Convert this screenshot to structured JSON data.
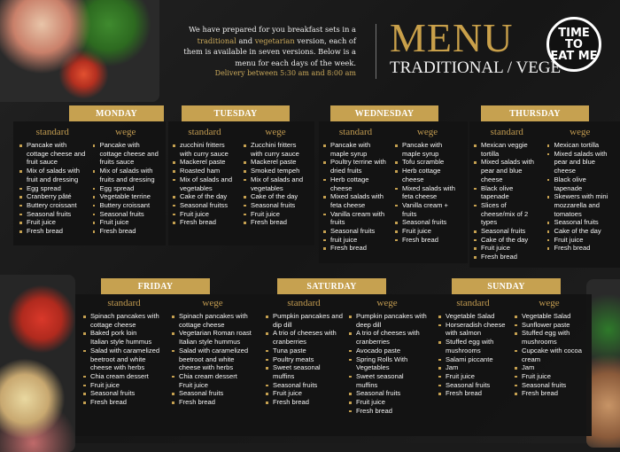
{
  "header": {
    "intro_parts": [
      "We have prepared for you breakfast sets in a ",
      "traditional",
      " and ",
      "vegetarian",
      " version, each of them is available in seven versions. Below is a menu for each days of the week."
    ],
    "delivery": "Delivery between 5:30 am and 8:00 am",
    "title": "MENU",
    "subtitle": "TRADITIONAL / VEGE",
    "logo_text": "TIME TO EAT ME"
  },
  "column_labels": {
    "standard": "standard",
    "wege": "wege"
  },
  "colors": {
    "gold": "#c6a150",
    "background": "#1b1b1b"
  },
  "days": [
    {
      "name": "MONDAY",
      "standard": [
        "Pancake with cottage cheese and fruit sauce",
        "Mix of salads with fruit and dressing",
        "Egg spread",
        "Cranberry pâté",
        "Buttery croissant",
        "Seasonal fruits",
        "Fruit juice",
        "Fresh bread"
      ],
      "wege": [
        "Pancake with cottage cheese and fruits sauce",
        "Mix of salads with fruits and dressing",
        "Egg spread",
        "Vegetable terrine",
        "Buttery croissant",
        "Seasonal fruits",
        "Fruit juice",
        "Fresh bread"
      ]
    },
    {
      "name": "TUESDAY",
      "standard": [
        "zucchini fritters with curry sauce",
        "Mackerel paste",
        "Roasted ham",
        "Mix of salads and vegetables",
        "Cake of the day",
        "Seasonal fruitss",
        "Fruit juice",
        "Fresh bread"
      ],
      "wege": [
        "Zucchini fritters with curry sauce",
        "Mackerel paste",
        "Smoked tempeh",
        "Mix of salads and vegetables",
        "Cake of the day",
        "Seasonal fruits",
        "Fruit juice",
        "Fresh bread"
      ]
    },
    {
      "name": "WEDNESDAY",
      "standard": [
        "Pancake with maple syrup",
        "Poultry terrine with dried fruits",
        "Herb cottage cheese",
        "Mixed salads with feta cheese",
        "Vanilla cream with fruits",
        "Seasonal fruits",
        "fruit juice",
        "Fresh bread"
      ],
      "wege": [
        "Pancake with maple syrup",
        "Tofu scramble",
        "Herb cottage cheese",
        "Mixed salads with feta cheese",
        "Vanilla cream + fruits",
        "Seasonal fruits",
        "Fruit juice",
        "Fresh bread"
      ]
    },
    {
      "name": "THURSDAY",
      "standard": [
        "Mexican veggie tortilla",
        "Mixed salads with pear and blue cheese",
        "Black olive tapenade",
        "Slices of cheese/mix of 2 types",
        "Seasonal fruits",
        "Cake of the day",
        "Fruit juice",
        "Fresh bread"
      ],
      "wege": [
        "Mexican tortilla",
        "Mixed salads with pear and blue cheese",
        "Black olive tapenade",
        "Skewers with mini mozzarella and tomatoes",
        "Seasonal fruits",
        "Cake of the day",
        "Fruit juice",
        "Fresh bread"
      ]
    },
    {
      "name": "FRIDAY",
      "standard": [
        "Spinach pancakes with cottage cheese",
        "Baked pork loin",
        "Italian style hummus",
        "Salad with caramelized beetroot and white cheese with herbs",
        "Chia cream dessert",
        "Fruit juice",
        "Seasonal fruits",
        "Fresh bread"
      ],
      "wege": [
        "Spinach pancakes with cottage cheese",
        "Vegetarian Roman roast",
        "Italian style hummus",
        "Salad with caramelized beetroot and white cheese with herbs",
        "Chia cream dessert",
        "Fruit juice",
        "Seasonal fruits",
        "Fresh bread"
      ]
    },
    {
      "name": "SATURDAY",
      "standard": [
        "Pumpkin pancakes and dip dill",
        "A trio of cheeses with cranberries",
        "Tuna paste",
        "Poultry meats",
        "Sweet seasonal muffins",
        "Seasonal fruits",
        "Fruit juice",
        "Fresh bread"
      ],
      "wege": [
        "Pumpkin pancakes with deep dill",
        "A trio of cheeses with cranberries",
        "Avocado paste",
        "Spring Rolls With Vegetables",
        "Sweet seasonal muffins",
        "Seasonal fruits",
        "Fruit juice",
        "Fresh bread"
      ]
    },
    {
      "name": "SUNDAY",
      "standard": [
        "Vegetable Salad",
        "Horseradish cheese with salmon",
        "Stuffed egg with mushrooms",
        "Salami piccante",
        "Jam",
        "Fruit juice",
        "Seasonal fruits",
        "Fresh bread"
      ],
      "wege": [
        "Vegetable Salad",
        "Sunflower paste",
        "Stuffed egg with mushrooms",
        "Cupcake with cocoa cream",
        "Jam",
        "Fruit juice",
        "Seasonal fruits",
        "Fresh bread"
      ]
    }
  ]
}
